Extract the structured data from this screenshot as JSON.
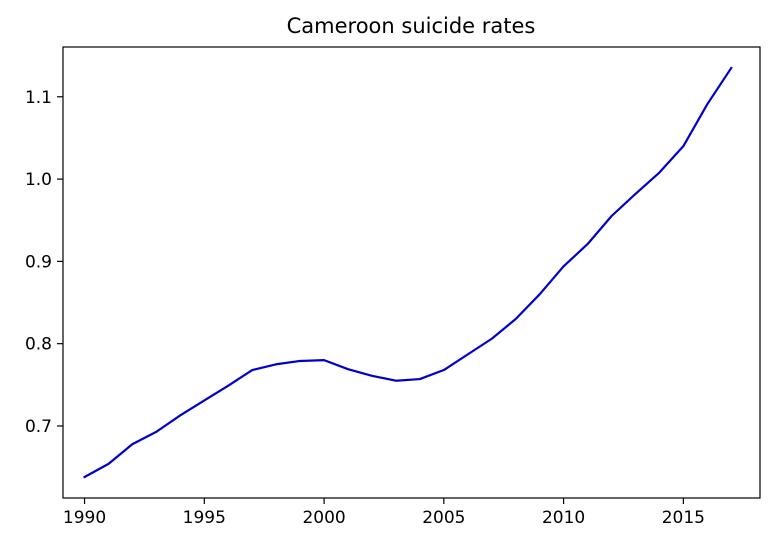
{
  "chart_data": {
    "type": "line",
    "title": "Cameroon suicide rates",
    "xlabel": "",
    "ylabel": "",
    "x_ticks": [
      1990,
      1995,
      2000,
      2005,
      2010,
      2015
    ],
    "y_ticks": [
      0.7,
      0.8,
      0.9,
      1.0,
      1.1
    ],
    "y_tick_labels": [
      "0.7",
      "0.8",
      "0.9",
      "1.0",
      "1.1"
    ],
    "xlim": [
      1989.1,
      2018.2
    ],
    "ylim": [
      0.6125,
      1.1605
    ],
    "grid": false,
    "series": [
      {
        "color": "#0000cc",
        "x": [
          1990,
          1991,
          1992,
          1993,
          1994,
          1995,
          1996,
          1997,
          1998,
          1999,
          2000,
          2001,
          2002,
          2003,
          2004,
          2005,
          2006,
          2007,
          2008,
          2009,
          2010,
          2011,
          2012,
          2013,
          2014,
          2015,
          2016,
          2017
        ],
        "values": [
          0.638,
          0.654,
          0.678,
          0.693,
          0.713,
          0.731,
          0.749,
          0.768,
          0.775,
          0.779,
          0.78,
          0.769,
          0.761,
          0.755,
          0.757,
          0.768,
          0.787,
          0.806,
          0.83,
          0.86,
          0.894,
          0.921,
          0.955,
          0.982,
          1.008,
          1.04,
          1.091,
          1.135
        ]
      }
    ]
  }
}
